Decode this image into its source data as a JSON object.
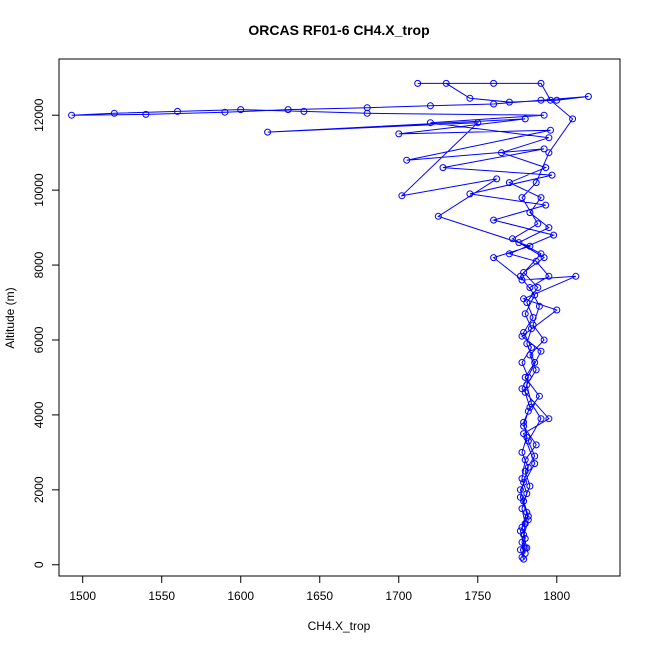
{
  "chart_data": {
    "type": "line",
    "title": "ORCAS RF01-6 CH4.X_trop",
    "xlabel": "CH4.X_trop",
    "ylabel": "Altitude (m)",
    "xlim": [
      1485,
      1840
    ],
    "ylim": [
      -300,
      13500
    ],
    "xticks": [
      1500,
      1550,
      1600,
      1650,
      1700,
      1750,
      1800
    ],
    "yticks": [
      0,
      2000,
      4000,
      6000,
      8000,
      10000,
      12000
    ],
    "grid": false,
    "series": [
      {
        "color": "#0000ff",
        "marker": "open-circle",
        "connected": true,
        "points": [
          [
            1779,
            150
          ],
          [
            1777,
            400
          ],
          [
            1780,
            700
          ],
          [
            1778,
            1000
          ],
          [
            1781,
            1400
          ],
          [
            1777,
            1800
          ],
          [
            1779,
            2200
          ],
          [
            1782,
            2600
          ],
          [
            1778,
            3000
          ],
          [
            1781,
            3400
          ],
          [
            1779,
            3800
          ],
          [
            1783,
            4200
          ],
          [
            1780,
            4600
          ],
          [
            1782,
            5000
          ],
          [
            1778,
            5400
          ],
          [
            1784,
            5800
          ],
          [
            1779,
            6200
          ],
          [
            1785,
            6600
          ],
          [
            1781,
            7000
          ],
          [
            1788,
            7400
          ],
          [
            1779,
            7800
          ],
          [
            1792,
            8200
          ],
          [
            1776,
            8600
          ],
          [
            1795,
            9000
          ],
          [
            1783,
            9400
          ],
          [
            1790,
            9800
          ],
          [
            1770,
            10200
          ],
          [
            1793,
            10600
          ],
          [
            1765,
            11000
          ],
          [
            1795,
            11400
          ],
          [
            1720,
            11800
          ],
          [
            1792,
            12000
          ],
          [
            1680,
            12050
          ],
          [
            1640,
            12100
          ],
          [
            1600,
            12150
          ],
          [
            1560,
            12100
          ],
          [
            1520,
            12050
          ],
          [
            1493,
            12000
          ],
          [
            1540,
            12020
          ],
          [
            1590,
            12080
          ],
          [
            1630,
            12150
          ],
          [
            1680,
            12200
          ],
          [
            1720,
            12250
          ],
          [
            1760,
            12300
          ],
          [
            1790,
            12400
          ],
          [
            1820,
            12500
          ],
          [
            1800,
            12400
          ],
          [
            1770,
            12350
          ],
          [
            1745,
            12450
          ],
          [
            1730,
            12850
          ],
          [
            1712,
            12850
          ],
          [
            1760,
            12850
          ],
          [
            1790,
            12850
          ],
          [
            1796,
            12400
          ],
          [
            1810,
            11900
          ],
          [
            1795,
            11000
          ],
          [
            1787,
            10200
          ],
          [
            1778,
            9800
          ],
          [
            1788,
            9100
          ],
          [
            1772,
            8700
          ],
          [
            1790,
            8300
          ],
          [
            1777,
            7700
          ],
          [
            1786,
            7200
          ],
          [
            1780,
            6700
          ],
          [
            1784,
            6300
          ],
          [
            1781,
            5900
          ],
          [
            1786,
            5400
          ],
          [
            1780,
            5000
          ],
          [
            1789,
            4500
          ],
          [
            1782,
            4100
          ],
          [
            1779,
            3700
          ],
          [
            1787,
            3200
          ],
          [
            1780,
            2800
          ],
          [
            1778,
            2300
          ],
          [
            1781,
            1900
          ],
          [
            1778,
            1500
          ],
          [
            1780,
            1100
          ],
          [
            1779,
            800
          ],
          [
            1781,
            450
          ],
          [
            1778,
            200
          ],
          [
            1780,
            450
          ],
          [
            1777,
            900
          ],
          [
            1782,
            1300
          ],
          [
            1779,
            1700
          ],
          [
            1783,
            2100
          ],
          [
            1780,
            2500
          ],
          [
            1786,
            2900
          ],
          [
            1782,
            3300
          ],
          [
            1790,
            3900
          ],
          [
            1784,
            4300
          ],
          [
            1781,
            4800
          ],
          [
            1787,
            5200
          ],
          [
            1783,
            5600
          ],
          [
            1792,
            6000
          ],
          [
            1785,
            6400
          ],
          [
            1789,
            6900
          ],
          [
            1783,
            7400
          ],
          [
            1795,
            7700
          ],
          [
            1787,
            8100
          ],
          [
            1770,
            8300
          ],
          [
            1798,
            8800
          ],
          [
            1760,
            9200
          ],
          [
            1793,
            9600
          ],
          [
            1745,
            9900
          ],
          [
            1797,
            10400
          ],
          [
            1728,
            10600
          ],
          [
            1792,
            11100
          ],
          [
            1705,
            10800
          ],
          [
            1796,
            11600
          ],
          [
            1700,
            11500
          ],
          [
            1780,
            11900
          ],
          [
            1617,
            11550
          ],
          [
            1750,
            11800
          ],
          [
            1702,
            9850
          ],
          [
            1762,
            10300
          ],
          [
            1725,
            9300
          ],
          [
            1783,
            8500
          ],
          [
            1760,
            8200
          ],
          [
            1778,
            7600
          ],
          [
            1812,
            7700
          ],
          [
            1779,
            7100
          ],
          [
            1800,
            6800
          ],
          [
            1778,
            6100
          ],
          [
            1790,
            5700
          ],
          [
            1778,
            4700
          ],
          [
            1795,
            3900
          ],
          [
            1779,
            3500
          ],
          [
            1786,
            2700
          ],
          [
            1777,
            2000
          ],
          [
            1782,
            1200
          ],
          [
            1778,
            600
          ],
          [
            1780,
            300
          ]
        ]
      }
    ]
  }
}
